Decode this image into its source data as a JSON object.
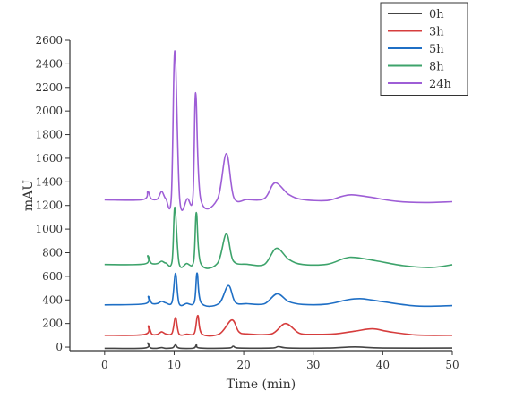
{
  "chart_data": {
    "type": "line",
    "title": "",
    "xlabel": "Time (min)",
    "ylabel": "mAU",
    "xlim": [
      -5,
      50
    ],
    "ylim": [
      -30,
      2600
    ],
    "xticks": [
      0,
      10,
      20,
      30,
      40,
      50
    ],
    "yticks": [
      0,
      200,
      400,
      600,
      800,
      1000,
      1200,
      1400,
      1600,
      1800,
      2000,
      2200,
      2400,
      2600
    ],
    "grid": false,
    "legend_position": "top-right",
    "series": [
      {
        "name": "0h",
        "color": "#444444",
        "points": [
          [
            0,
            -10
          ],
          [
            5.8,
            -8
          ],
          [
            6.2,
            35
          ],
          [
            6.6,
            -6
          ],
          [
            7.5,
            -10
          ],
          [
            8.2,
            -4
          ],
          [
            8.8,
            -10
          ],
          [
            9.8,
            -6
          ],
          [
            10.2,
            20
          ],
          [
            10.7,
            -8
          ],
          [
            12.8,
            -8
          ],
          [
            13.2,
            18
          ],
          [
            13.7,
            -8
          ],
          [
            17.8,
            -8
          ],
          [
            18.5,
            8
          ],
          [
            19.3,
            -8
          ],
          [
            24,
            -8
          ],
          [
            25,
            4
          ],
          [
            26.5,
            -8
          ],
          [
            32,
            -8
          ],
          [
            36,
            2
          ],
          [
            40,
            -8
          ],
          [
            50,
            -8
          ]
        ]
      },
      {
        "name": "3h",
        "color": "#d63d3d",
        "points": [
          [
            0,
            100
          ],
          [
            5.8,
            108
          ],
          [
            6.3,
            180
          ],
          [
            6.8,
            110
          ],
          [
            7.6,
            108
          ],
          [
            8.2,
            130
          ],
          [
            8.8,
            112
          ],
          [
            9.7,
            118
          ],
          [
            10.2,
            250
          ],
          [
            10.7,
            112
          ],
          [
            11.8,
            110
          ],
          [
            12.9,
            118
          ],
          [
            13.4,
            268
          ],
          [
            14,
            112
          ],
          [
            16.5,
            112
          ],
          [
            18.3,
            230
          ],
          [
            19.3,
            130
          ],
          [
            20.5,
            112
          ],
          [
            24,
            112
          ],
          [
            26,
            200
          ],
          [
            28,
            118
          ],
          [
            30,
            108
          ],
          [
            33,
            112
          ],
          [
            36,
            135
          ],
          [
            38.5,
            155
          ],
          [
            41,
            130
          ],
          [
            45,
            102
          ],
          [
            50,
            100
          ]
        ]
      },
      {
        "name": "5h",
        "color": "#1f6fc5",
        "points": [
          [
            0,
            358
          ],
          [
            5.8,
            368
          ],
          [
            6.3,
            430
          ],
          [
            6.8,
            372
          ],
          [
            7.6,
            370
          ],
          [
            8.2,
            388
          ],
          [
            8.8,
            375
          ],
          [
            9.7,
            382
          ],
          [
            10.2,
            625
          ],
          [
            10.7,
            372
          ],
          [
            11.8,
            370
          ],
          [
            12.9,
            382
          ],
          [
            13.3,
            628
          ],
          [
            13.9,
            375
          ],
          [
            16.4,
            368
          ],
          [
            17.8,
            522
          ],
          [
            18.8,
            380
          ],
          [
            20.5,
            368
          ],
          [
            23,
            368
          ],
          [
            24.8,
            452
          ],
          [
            26.5,
            385
          ],
          [
            28.5,
            362
          ],
          [
            32,
            365
          ],
          [
            35,
            402
          ],
          [
            37,
            410
          ],
          [
            40,
            385
          ],
          [
            45,
            348
          ],
          [
            50,
            352
          ]
        ]
      },
      {
        "name": "8h",
        "color": "#3da36b",
        "points": [
          [
            0,
            700
          ],
          [
            5.8,
            705
          ],
          [
            6.2,
            775
          ],
          [
            6.7,
            712
          ],
          [
            7.6,
            708
          ],
          [
            8.2,
            728
          ],
          [
            8.8,
            712
          ],
          [
            9.7,
            725
          ],
          [
            10.1,
            1185
          ],
          [
            10.7,
            712
          ],
          [
            11.8,
            708
          ],
          [
            12.8,
            725
          ],
          [
            13.2,
            1140
          ],
          [
            13.8,
            712
          ],
          [
            16.2,
            708
          ],
          [
            17.5,
            960
          ],
          [
            18.5,
            732
          ],
          [
            20.5,
            702
          ],
          [
            23,
            702
          ],
          [
            24.7,
            838
          ],
          [
            26.5,
            742
          ],
          [
            28.5,
            700
          ],
          [
            32,
            702
          ],
          [
            34.5,
            752
          ],
          [
            36,
            760
          ],
          [
            39,
            732
          ],
          [
            43,
            690
          ],
          [
            47,
            675
          ],
          [
            50,
            698
          ]
        ]
      },
      {
        "name": "24h",
        "color": "#9e5ed6",
        "points": [
          [
            0,
            1248
          ],
          [
            5.5,
            1250
          ],
          [
            6.2,
            1320
          ],
          [
            6.7,
            1258
          ],
          [
            7.6,
            1255
          ],
          [
            8.2,
            1318
          ],
          [
            8.8,
            1258
          ],
          [
            9.6,
            1270
          ],
          [
            10.1,
            2510
          ],
          [
            10.8,
            1250
          ],
          [
            11.9,
            1258
          ],
          [
            12.7,
            1270
          ],
          [
            13.1,
            2155
          ],
          [
            13.8,
            1258
          ],
          [
            16.2,
            1250
          ],
          [
            17.5,
            1640
          ],
          [
            18.6,
            1265
          ],
          [
            20.5,
            1250
          ],
          [
            23,
            1260
          ],
          [
            24.5,
            1392
          ],
          [
            26.5,
            1292
          ],
          [
            28.5,
            1250
          ],
          [
            32,
            1242
          ],
          [
            34,
            1275
          ],
          [
            35.5,
            1290
          ],
          [
            38,
            1272
          ],
          [
            42,
            1235
          ],
          [
            46,
            1225
          ],
          [
            50,
            1232
          ]
        ]
      }
    ]
  }
}
